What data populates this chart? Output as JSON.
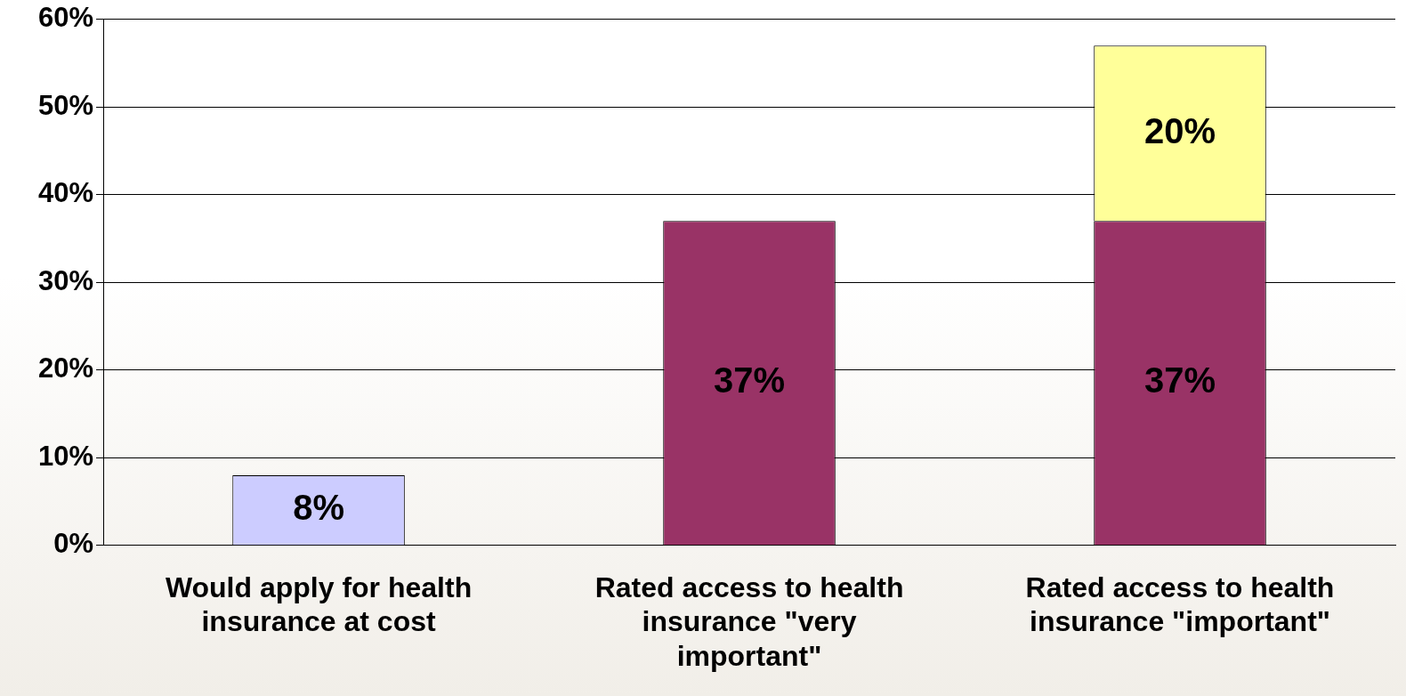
{
  "chart_data": {
    "type": "bar",
    "stacked": true,
    "categories": [
      "Would apply for health insurance at cost",
      "Rated access to health insurance \"very important\"",
      "Rated access to health insurance \"important\""
    ],
    "series": [
      {
        "color": "#ccccff",
        "values": [
          8,
          null,
          null
        ],
        "value_labels": [
          "8%",
          null,
          null
        ]
      },
      {
        "color": "#993366",
        "values": [
          null,
          37,
          37
        ],
        "value_labels": [
          null,
          "37%",
          "37%"
        ]
      },
      {
        "color": "#ffff99",
        "values": [
          null,
          null,
          20
        ],
        "value_labels": [
          null,
          null,
          "20%"
        ]
      }
    ],
    "ylim": [
      0,
      60
    ],
    "yticks": [
      {
        "value": 0,
        "label": "0%"
      },
      {
        "value": 10,
        "label": "10%"
      },
      {
        "value": 20,
        "label": "20%"
      },
      {
        "value": 30,
        "label": "30%"
      },
      {
        "value": 40,
        "label": "40%"
      },
      {
        "value": 50,
        "label": "50%"
      },
      {
        "value": 60,
        "label": "60%"
      }
    ],
    "grid": "y",
    "legend": false
  }
}
